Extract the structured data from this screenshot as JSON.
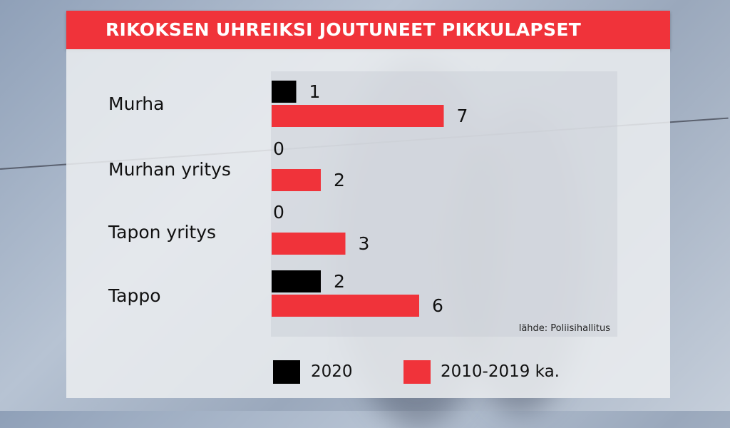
{
  "title": "RIKOKSEN UHREIKSI JOUTUNEET PIKKULAPSET",
  "source": "lähde: Poliisihallitus",
  "colors": {
    "series_2020": "#000000",
    "series_avg": "#f0333a",
    "title_bg": "#f0333a"
  },
  "chart_data": {
    "type": "bar",
    "orientation": "horizontal",
    "categories": [
      "Murha",
      "Murhan yritys",
      "Tapon yritys",
      "Tappo"
    ],
    "series": [
      {
        "name": "2020",
        "values": [
          1,
          0,
          0,
          2
        ],
        "color": "#000000"
      },
      {
        "name": "2010-2019 ka.",
        "values": [
          7,
          2,
          3,
          6
        ],
        "color": "#f0333a"
      }
    ],
    "title": "RIKOKSEN UHREIKSI JOUTUNEET PIKKULAPSET",
    "xlabel": "",
    "ylabel": "",
    "xlim": [
      0,
      7.5
    ],
    "grid": false,
    "data_labels": true,
    "legend_position": "bottom"
  }
}
